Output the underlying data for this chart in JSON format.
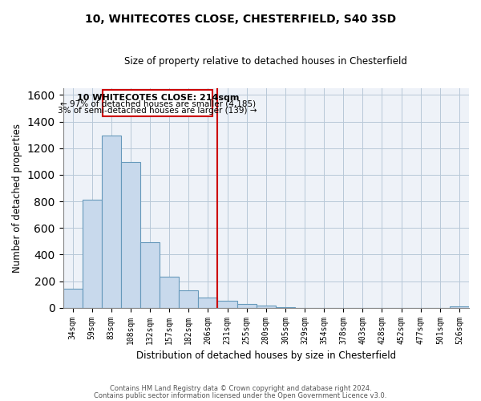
{
  "title_line1": "10, WHITECOTES CLOSE, CHESTERFIELD, S40 3SD",
  "title_line2": "Size of property relative to detached houses in Chesterfield",
  "xlabel": "Distribution of detached houses by size in Chesterfield",
  "ylabel": "Number of detached properties",
  "bar_labels": [
    "34sqm",
    "59sqm",
    "83sqm",
    "108sqm",
    "132sqm",
    "157sqm",
    "182sqm",
    "206sqm",
    "231sqm",
    "255sqm",
    "280sqm",
    "305sqm",
    "329sqm",
    "354sqm",
    "378sqm",
    "403sqm",
    "428sqm",
    "452sqm",
    "477sqm",
    "501sqm",
    "526sqm"
  ],
  "bar_heights": [
    140,
    810,
    1295,
    1095,
    490,
    235,
    130,
    75,
    50,
    28,
    15,
    5,
    0,
    0,
    0,
    0,
    0,
    0,
    0,
    0,
    10
  ],
  "bar_color": "#c8d9ec",
  "bar_edge_color": "#6699bb",
  "annotation_title": "10 WHITECOTES CLOSE: 214sqm",
  "annotation_line1": "← 97% of detached houses are smaller (4,185)",
  "annotation_line2": "3% of semi-detached houses are larger (139) →",
  "annotation_box_color": "#ffffff",
  "annotation_box_edge": "#cc0000",
  "property_line_color": "#cc0000",
  "ylim": [
    0,
    1650
  ],
  "yticks": [
    0,
    200,
    400,
    600,
    800,
    1000,
    1200,
    1400,
    1600
  ],
  "footer_line1": "Contains HM Land Registry data © Crown copyright and database right 2024.",
  "footer_line2": "Contains public sector information licensed under the Open Government Licence v3.0.",
  "bg_color": "#eef2f8"
}
